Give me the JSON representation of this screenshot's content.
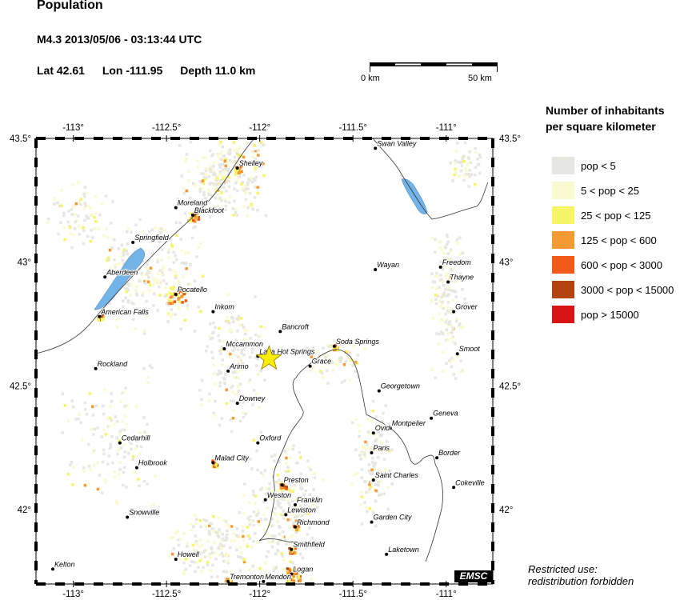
{
  "header": {
    "title": "Population",
    "event": "M4.3  2013/05/06 - 03:13:44 UTC",
    "lat": "Lat 42.61",
    "lon": "Lon -111.95",
    "depth": "Depth  11.0 km"
  },
  "scale": {
    "start_label": "0 km",
    "end_label": "50 km"
  },
  "map": {
    "lon_range": [
      -113.2,
      -110.75
    ],
    "lat_range": [
      41.7,
      43.5
    ],
    "lon_ticks": [
      {
        "value": -113,
        "label": "-113°"
      },
      {
        "value": -112.5,
        "label": "-112.5°"
      },
      {
        "value": -112,
        "label": "-112°"
      },
      {
        "value": -111.5,
        "label": "-111.5°"
      },
      {
        "value": -111,
        "label": "-111°"
      }
    ],
    "lat_ticks": [
      {
        "value": 43.5,
        "label": "43.5°"
      },
      {
        "value": 43,
        "label": "43°"
      },
      {
        "value": 42.5,
        "label": "42.5°"
      },
      {
        "value": 42,
        "label": "42°"
      }
    ],
    "epicenter": {
      "lon": -111.95,
      "lat": 42.61,
      "color": "#ffee00"
    },
    "towns": [
      {
        "name": "Swan Valley",
        "lon": -111.38,
        "lat": 43.46
      },
      {
        "name": "Shelley",
        "lon": -112.12,
        "lat": 43.38
      },
      {
        "name": "Moreland",
        "lon": -112.45,
        "lat": 43.22
      },
      {
        "name": "Blackfoot",
        "lon": -112.36,
        "lat": 43.19
      },
      {
        "name": "Springfield",
        "lon": -112.68,
        "lat": 43.08
      },
      {
        "name": "Wayan",
        "lon": -111.38,
        "lat": 42.97
      },
      {
        "name": "Freedom",
        "lon": -111.03,
        "lat": 42.98
      },
      {
        "name": "Aberdeen",
        "lon": -112.83,
        "lat": 42.94
      },
      {
        "name": "Thayne",
        "lon": -110.99,
        "lat": 42.92
      },
      {
        "name": "Pocatello",
        "lon": -112.45,
        "lat": 42.87
      },
      {
        "name": "Grover",
        "lon": -110.96,
        "lat": 42.8
      },
      {
        "name": "American Falls",
        "lon": -112.86,
        "lat": 42.78
      },
      {
        "name": "Inkom",
        "lon": -112.25,
        "lat": 42.8
      },
      {
        "name": "Bancroft",
        "lon": -111.89,
        "lat": 42.72
      },
      {
        "name": "Mccammon",
        "lon": -112.19,
        "lat": 42.65
      },
      {
        "name": "Soda Springs",
        "lon": -111.6,
        "lat": 42.66
      },
      {
        "name": "Lava Hot Springs",
        "lon": -112.01,
        "lat": 42.62
      },
      {
        "name": "Smoot",
        "lon": -110.94,
        "lat": 42.63
      },
      {
        "name": "Arimo",
        "lon": -112.17,
        "lat": 42.56
      },
      {
        "name": "Grace",
        "lon": -111.73,
        "lat": 42.58
      },
      {
        "name": "Rockland",
        "lon": -112.88,
        "lat": 42.57
      },
      {
        "name": "Georgetown",
        "lon": -111.36,
        "lat": 42.48
      },
      {
        "name": "Downey",
        "lon": -112.12,
        "lat": 42.43
      },
      {
        "name": "Geneva",
        "lon": -111.08,
        "lat": 42.37
      },
      {
        "name": "Montpelier",
        "lon": -111.3,
        "lat": 42.33
      },
      {
        "name": "Ovid",
        "lon": -111.39,
        "lat": 42.31
      },
      {
        "name": "Oxford",
        "lon": -112.01,
        "lat": 42.27
      },
      {
        "name": "Cedarhill",
        "lon": -112.75,
        "lat": 42.27
      },
      {
        "name": "Paris",
        "lon": -111.4,
        "lat": 42.23
      },
      {
        "name": "Border",
        "lon": -111.05,
        "lat": 42.21
      },
      {
        "name": "Malad City",
        "lon": -112.25,
        "lat": 42.19
      },
      {
        "name": "Holbrook",
        "lon": -112.66,
        "lat": 42.17
      },
      {
        "name": "Saint Charles",
        "lon": -111.39,
        "lat": 42.12
      },
      {
        "name": "Preston",
        "lon": -111.88,
        "lat": 42.1
      },
      {
        "name": "Cokeville",
        "lon": -110.96,
        "lat": 42.09
      },
      {
        "name": "Weston",
        "lon": -111.97,
        "lat": 42.04
      },
      {
        "name": "Franklin",
        "lon": -111.81,
        "lat": 42.02
      },
      {
        "name": "Lewiston",
        "lon": -111.86,
        "lat": 41.98
      },
      {
        "name": "Snowville",
        "lon": -112.71,
        "lat": 41.97
      },
      {
        "name": "Garden City",
        "lon": -111.4,
        "lat": 41.95
      },
      {
        "name": "Richmond",
        "lon": -111.81,
        "lat": 41.93
      },
      {
        "name": "Smithfield",
        "lon": -111.83,
        "lat": 41.84
      },
      {
        "name": "Laketown",
        "lon": -111.32,
        "lat": 41.82
      },
      {
        "name": "Howell",
        "lon": -112.45,
        "lat": 41.8
      },
      {
        "name": "Kelton",
        "lon": -113.11,
        "lat": 41.76
      },
      {
        "name": "Logan",
        "lon": -111.83,
        "lat": 41.74
      },
      {
        "name": "Tremonton",
        "lon": -112.17,
        "lat": 41.71
      },
      {
        "name": "Mendon",
        "lon": -111.98,
        "lat": 41.71
      }
    ]
  },
  "legend": {
    "title_line1": "Number of inhabitants",
    "title_line2": "per square kilometer",
    "items": [
      {
        "label": "pop < 5",
        "color": "#e6e6e2"
      },
      {
        "label": "5 < pop < 25",
        "color": "#fafad0"
      },
      {
        "label": "25 < pop < 125",
        "color": "#f5f566"
      },
      {
        "label": "125 < pop < 600",
        "color": "#f39a34"
      },
      {
        "label": "600 < pop < 3000",
        "color": "#f25a1a"
      },
      {
        "label": "3000 < pop < 15000",
        "color": "#b3440f"
      },
      {
        "label": "pop > 15000",
        "color": "#d81414"
      }
    ]
  },
  "footer": {
    "restricted_line1": "Restricted use:",
    "restricted_line2": "redistribution forbidden",
    "logo": "EMSC"
  },
  "colors": {
    "water": "#72b4e8",
    "border": "#333333"
  }
}
